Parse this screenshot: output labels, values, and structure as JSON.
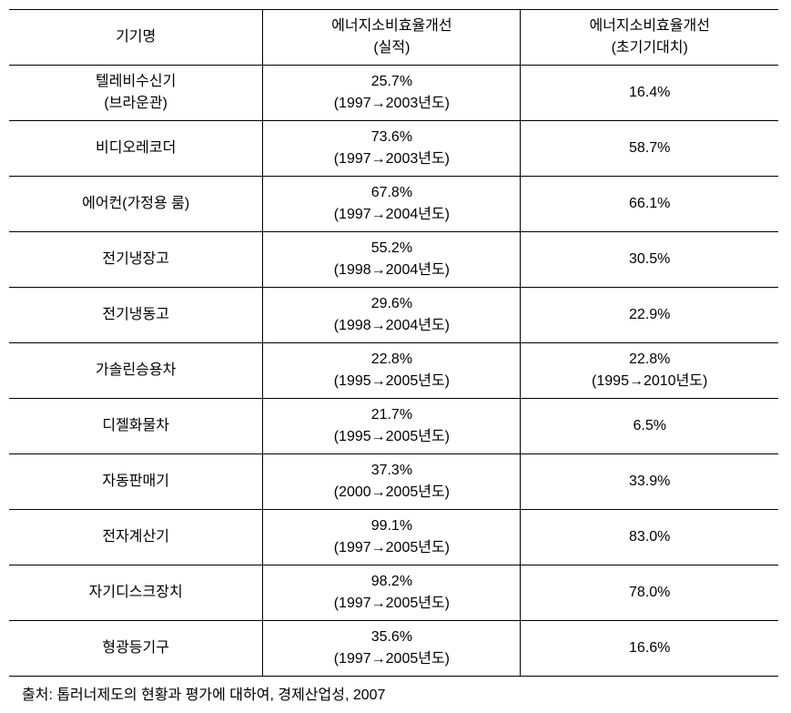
{
  "table": {
    "col_widths": [
      "33%",
      "33.5%",
      "33.5%"
    ],
    "header": {
      "col1": "기기명",
      "col2_line1": "에너지소비효율개선",
      "col2_line2": "(실적)",
      "col3_line1": "에너지소비효율개선",
      "col3_line2": "(초기기대치)"
    },
    "rows": [
      {
        "name_line1": "텔레비수신기",
        "name_line2": "(브라운관)",
        "actual_line1": "25.7%",
        "actual_line2": "(1997→2003년도)",
        "expected_line1": "16.4%",
        "expected_line2": ""
      },
      {
        "name_line1": "비디오레코더",
        "name_line2": "",
        "actual_line1": "73.6%",
        "actual_line2": "(1997→2003년도)",
        "expected_line1": "58.7%",
        "expected_line2": ""
      },
      {
        "name_line1": "에어컨(가정용 룸)",
        "name_line2": "",
        "actual_line1": "67.8%",
        "actual_line2": "(1997→2004년도)",
        "expected_line1": "66.1%",
        "expected_line2": ""
      },
      {
        "name_line1": "전기냉장고",
        "name_line2": "",
        "actual_line1": "55.2%",
        "actual_line2": "(1998→2004년도)",
        "expected_line1": "30.5%",
        "expected_line2": ""
      },
      {
        "name_line1": "전기냉동고",
        "name_line2": "",
        "actual_line1": "29.6%",
        "actual_line2": "(1998→2004년도)",
        "expected_line1": "22.9%",
        "expected_line2": ""
      },
      {
        "name_line1": "가솔린승용차",
        "name_line2": "",
        "actual_line1": "22.8%",
        "actual_line2": "(1995→2005년도)",
        "expected_line1": "22.8%",
        "expected_line2": "(1995→2010년도)"
      },
      {
        "name_line1": "디젤화물차",
        "name_line2": "",
        "actual_line1": "21.7%",
        "actual_line2": "(1995→2005년도)",
        "expected_line1": "6.5%",
        "expected_line2": ""
      },
      {
        "name_line1": "자동판매기",
        "name_line2": "",
        "actual_line1": "37.3%",
        "actual_line2": "(2000→2005년도)",
        "expected_line1": "33.9%",
        "expected_line2": ""
      },
      {
        "name_line1": "전자계산기",
        "name_line2": "",
        "actual_line1": "99.1%",
        "actual_line2": "(1997→2005년도)",
        "expected_line1": "83.0%",
        "expected_line2": ""
      },
      {
        "name_line1": "자기디스크장치",
        "name_line2": "",
        "actual_line1": "98.2%",
        "actual_line2": "(1997→2005년도)",
        "expected_line1": "78.0%",
        "expected_line2": ""
      },
      {
        "name_line1": "형광등기구",
        "name_line2": "",
        "actual_line1": "35.6%",
        "actual_line2": "(1997→2005년도)",
        "expected_line1": "16.6%",
        "expected_line2": ""
      }
    ]
  },
  "source": "출처: 톱러너제도의 현황과 평가에 대하여, 경제산업성, 2007"
}
